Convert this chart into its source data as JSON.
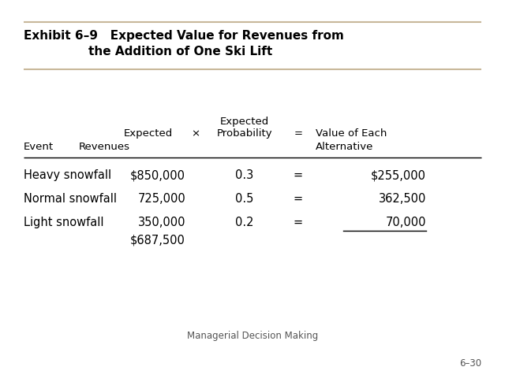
{
  "title_line1": "Exhibit 6–9   Expected Value for Revenues from",
  "title_line2": "the Addition of One Ski Lift",
  "bg_color": "#ffffff",
  "title_color": "#000000",
  "title_bar_color": "#c8b89a",
  "footer": "Managerial Decision Making",
  "page": "6–30",
  "rows": [
    {
      "event": "Heavy snowfall",
      "revenue": "$850,000",
      "prob": "0.3",
      "value": "$255,000",
      "underline": false
    },
    {
      "event": "Normal snowfall",
      "revenue": "725,000",
      "prob": "0.5",
      "value": "362,500",
      "underline": false
    },
    {
      "event": "Light snowfall",
      "revenue": "350,000",
      "prob": "0.2",
      "value": "70,000",
      "underline": true
    }
  ],
  "total": "$687,500",
  "title_fontsize": 11.0,
  "header_fontsize": 9.5,
  "data_fontsize": 10.5,
  "footer_fontsize": 8.5
}
